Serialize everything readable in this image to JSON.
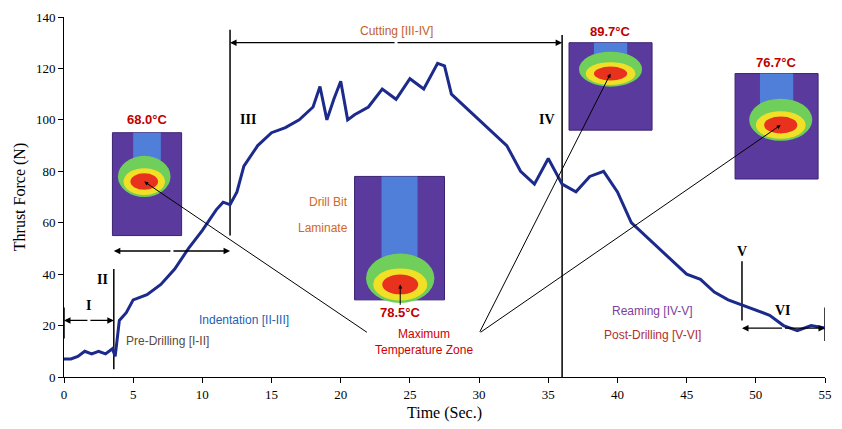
{
  "chart_data": {
    "type": "line",
    "x_label": "Time (Sec.)",
    "y_label": "Thrust Force (N)",
    "color": "#1c2a8c",
    "x": [
      0,
      0.5,
      1,
      1.5,
      2,
      2.5,
      3,
      3.5,
      3.7,
      4,
      4.5,
      5,
      6,
      7,
      8,
      9,
      10,
      11,
      11.5,
      12,
      12.5,
      13,
      14,
      15,
      16,
      17,
      18,
      18.5,
      19,
      19.5,
      20,
      20.5,
      21,
      22,
      23,
      24,
      25,
      26,
      27,
      27.5,
      28,
      29,
      30,
      31,
      32,
      33,
      34,
      35,
      35.5,
      36,
      37,
      38,
      39,
      40,
      41,
      42,
      43,
      44,
      45,
      46,
      47,
      48,
      49,
      50,
      51,
      52,
      53,
      54,
      55
    ],
    "values": [
      7,
      7,
      8,
      10,
      9,
      10,
      9,
      11,
      8,
      22,
      25,
      30,
      32,
      36,
      42,
      50,
      57,
      65,
      68,
      67,
      72,
      82,
      90,
      95,
      97,
      100,
      105,
      113,
      100,
      108,
      115,
      100,
      102,
      105,
      112,
      108,
      116,
      112,
      122,
      121,
      110,
      105,
      100,
      95,
      90,
      80,
      75,
      85,
      80,
      75,
      72,
      78,
      80,
      72,
      60,
      55,
      50,
      45,
      40,
      38,
      33,
      30,
      28,
      26,
      24,
      20,
      18,
      20,
      19
    ],
    "xlim": [
      0,
      55
    ],
    "xticks": [
      0,
      5,
      10,
      15,
      20,
      25,
      30,
      35,
      40,
      45,
      50,
      55
    ],
    "ylim": [
      0,
      140
    ],
    "yticks": [
      0,
      20,
      40,
      60,
      80,
      100,
      120,
      140
    ],
    "grid": false,
    "phases": [
      {
        "label": "I",
        "time": 0
      },
      {
        "label": "II",
        "time": 3.6
      },
      {
        "label": "III",
        "time": 12
      },
      {
        "label": "IV",
        "time": 36
      },
      {
        "label": "V",
        "time": 49
      },
      {
        "label": "VI",
        "time": 55
      }
    ],
    "phase_spans": [
      {
        "text": "Pre-Drilling [I-II]",
        "from": "I",
        "to": "II",
        "color": "#5a4a3a"
      },
      {
        "text": "Indentation [II-III]",
        "from": "II",
        "to": "III",
        "color": "#1a5fb4"
      },
      {
        "text": "Cutting [III-IV]",
        "from": "III",
        "to": "IV",
        "color": "#c0622d"
      },
      {
        "text": "Reaming [IV-V]",
        "from": "IV",
        "to": "V",
        "color": "#7b3fa0"
      },
      {
        "text": "Post-Drilling [V-VI]",
        "from": "V",
        "to": "VI",
        "color": "#b03030"
      }
    ],
    "thermal_images": [
      {
        "label": "68.0°C",
        "color": "#c00000"
      },
      {
        "label": "78.5°C",
        "color": "#c00000",
        "parts": [
          {
            "text": "Drill Bit",
            "color": "#d2691e"
          },
          {
            "text": "Laminate",
            "color": "#d2691e"
          }
        ]
      },
      {
        "label": "89.7°C",
        "color": "#c00000"
      },
      {
        "label": "76.7°C",
        "color": "#c00000"
      }
    ],
    "temperature_zone": {
      "text": "Maximum Temperature Zone",
      "color": "#d00000"
    }
  }
}
